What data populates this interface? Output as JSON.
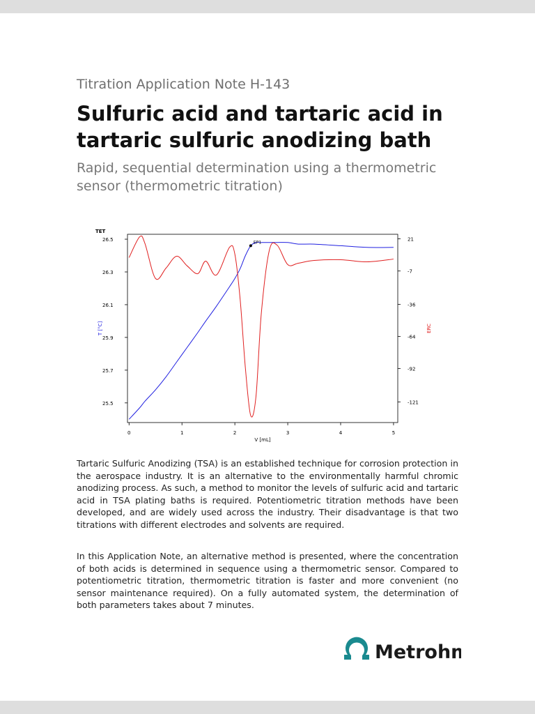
{
  "header": {
    "series_label": "Titration Application Note H-143",
    "title": "Sulfuric acid and tartaric acid in tartaric sulfuric anodizing bath",
    "subtitle": "Rapid, sequential determination using a thermometric sensor (thermometric titration)"
  },
  "chart_data": {
    "type": "line",
    "title": "TET",
    "annotation": "EP1",
    "x_label": "V [mL]",
    "y_label": "T [°C]",
    "y2_label": "ERC",
    "x": [
      0,
      0.2,
      0.3,
      0.5,
      0.7,
      0.9,
      1.1,
      1.3,
      1.45,
      1.65,
      1.9,
      2.0,
      2.1,
      2.2,
      2.3,
      2.4,
      2.5,
      2.65,
      2.8,
      3.0,
      3.2,
      3.5,
      4.0,
      4.5,
      5.0
    ],
    "series": [
      {
        "color": "#1f1fe0",
        "values": [
          25.4,
          25.47,
          25.51,
          25.58,
          25.66,
          25.75,
          25.84,
          25.93,
          26.0,
          26.09,
          26.21,
          26.26,
          26.32,
          26.4,
          26.46,
          26.48,
          26.48,
          26.48,
          26.48,
          26.48,
          26.47,
          26.47,
          26.46,
          26.45,
          26.45
        ]
      },
      {
        "color": "#e01f1f",
        "axis": "y2",
        "values": [
          4.7,
          22.8,
          17,
          -13.5,
          -4.4,
          5.9,
          -2.6,
          -9.3,
          1.6,
          -10.5,
          13.7,
          7.7,
          -31.6,
          -92,
          -133,
          -116,
          -44,
          10.7,
          15.5,
          -1.4,
          -0.2,
          2.2,
          2.8,
          1.0,
          3.4
        ]
      }
    ],
    "xlim": [
      -0.03,
      5.08
    ],
    "xticks": [
      0,
      1,
      2,
      3,
      4,
      5
    ],
    "ylim": [
      25.38,
      26.53
    ],
    "yticks": [
      26.5,
      26.3,
      26.1,
      25.9,
      25.7,
      25.5
    ],
    "y2lim": [
      -139,
      25
    ],
    "y2ticks": [
      21,
      -7,
      -36,
      -64,
      -92,
      -121
    ]
  },
  "paragraphs": [
    "Tartaric Sulfuric Anodizing (TSA) is an established technique for corrosion protection in the aerospace industry. It is an alternative to the environmentally harmful chromic anodizing process. As such, a method to monitor the levels of sulfuric acid and tartaric acid in TSA plating baths is required. Potentiometric titration methods have been developed, and are widely used across the industry. Their disadvantage is that two titrations with different electrodes and solvents are required.",
    "In this Application Note, an alternative method is presented, where the concentration of both acids is determined in sequence using a thermometric sensor. Compared to potentiometric titration, thermometric titration is faster and more convenient (no sensor maintenance required). On a fully automated system, the determination of both parameters takes about 7 minutes."
  ],
  "logo": {
    "text": "Metrohm"
  }
}
